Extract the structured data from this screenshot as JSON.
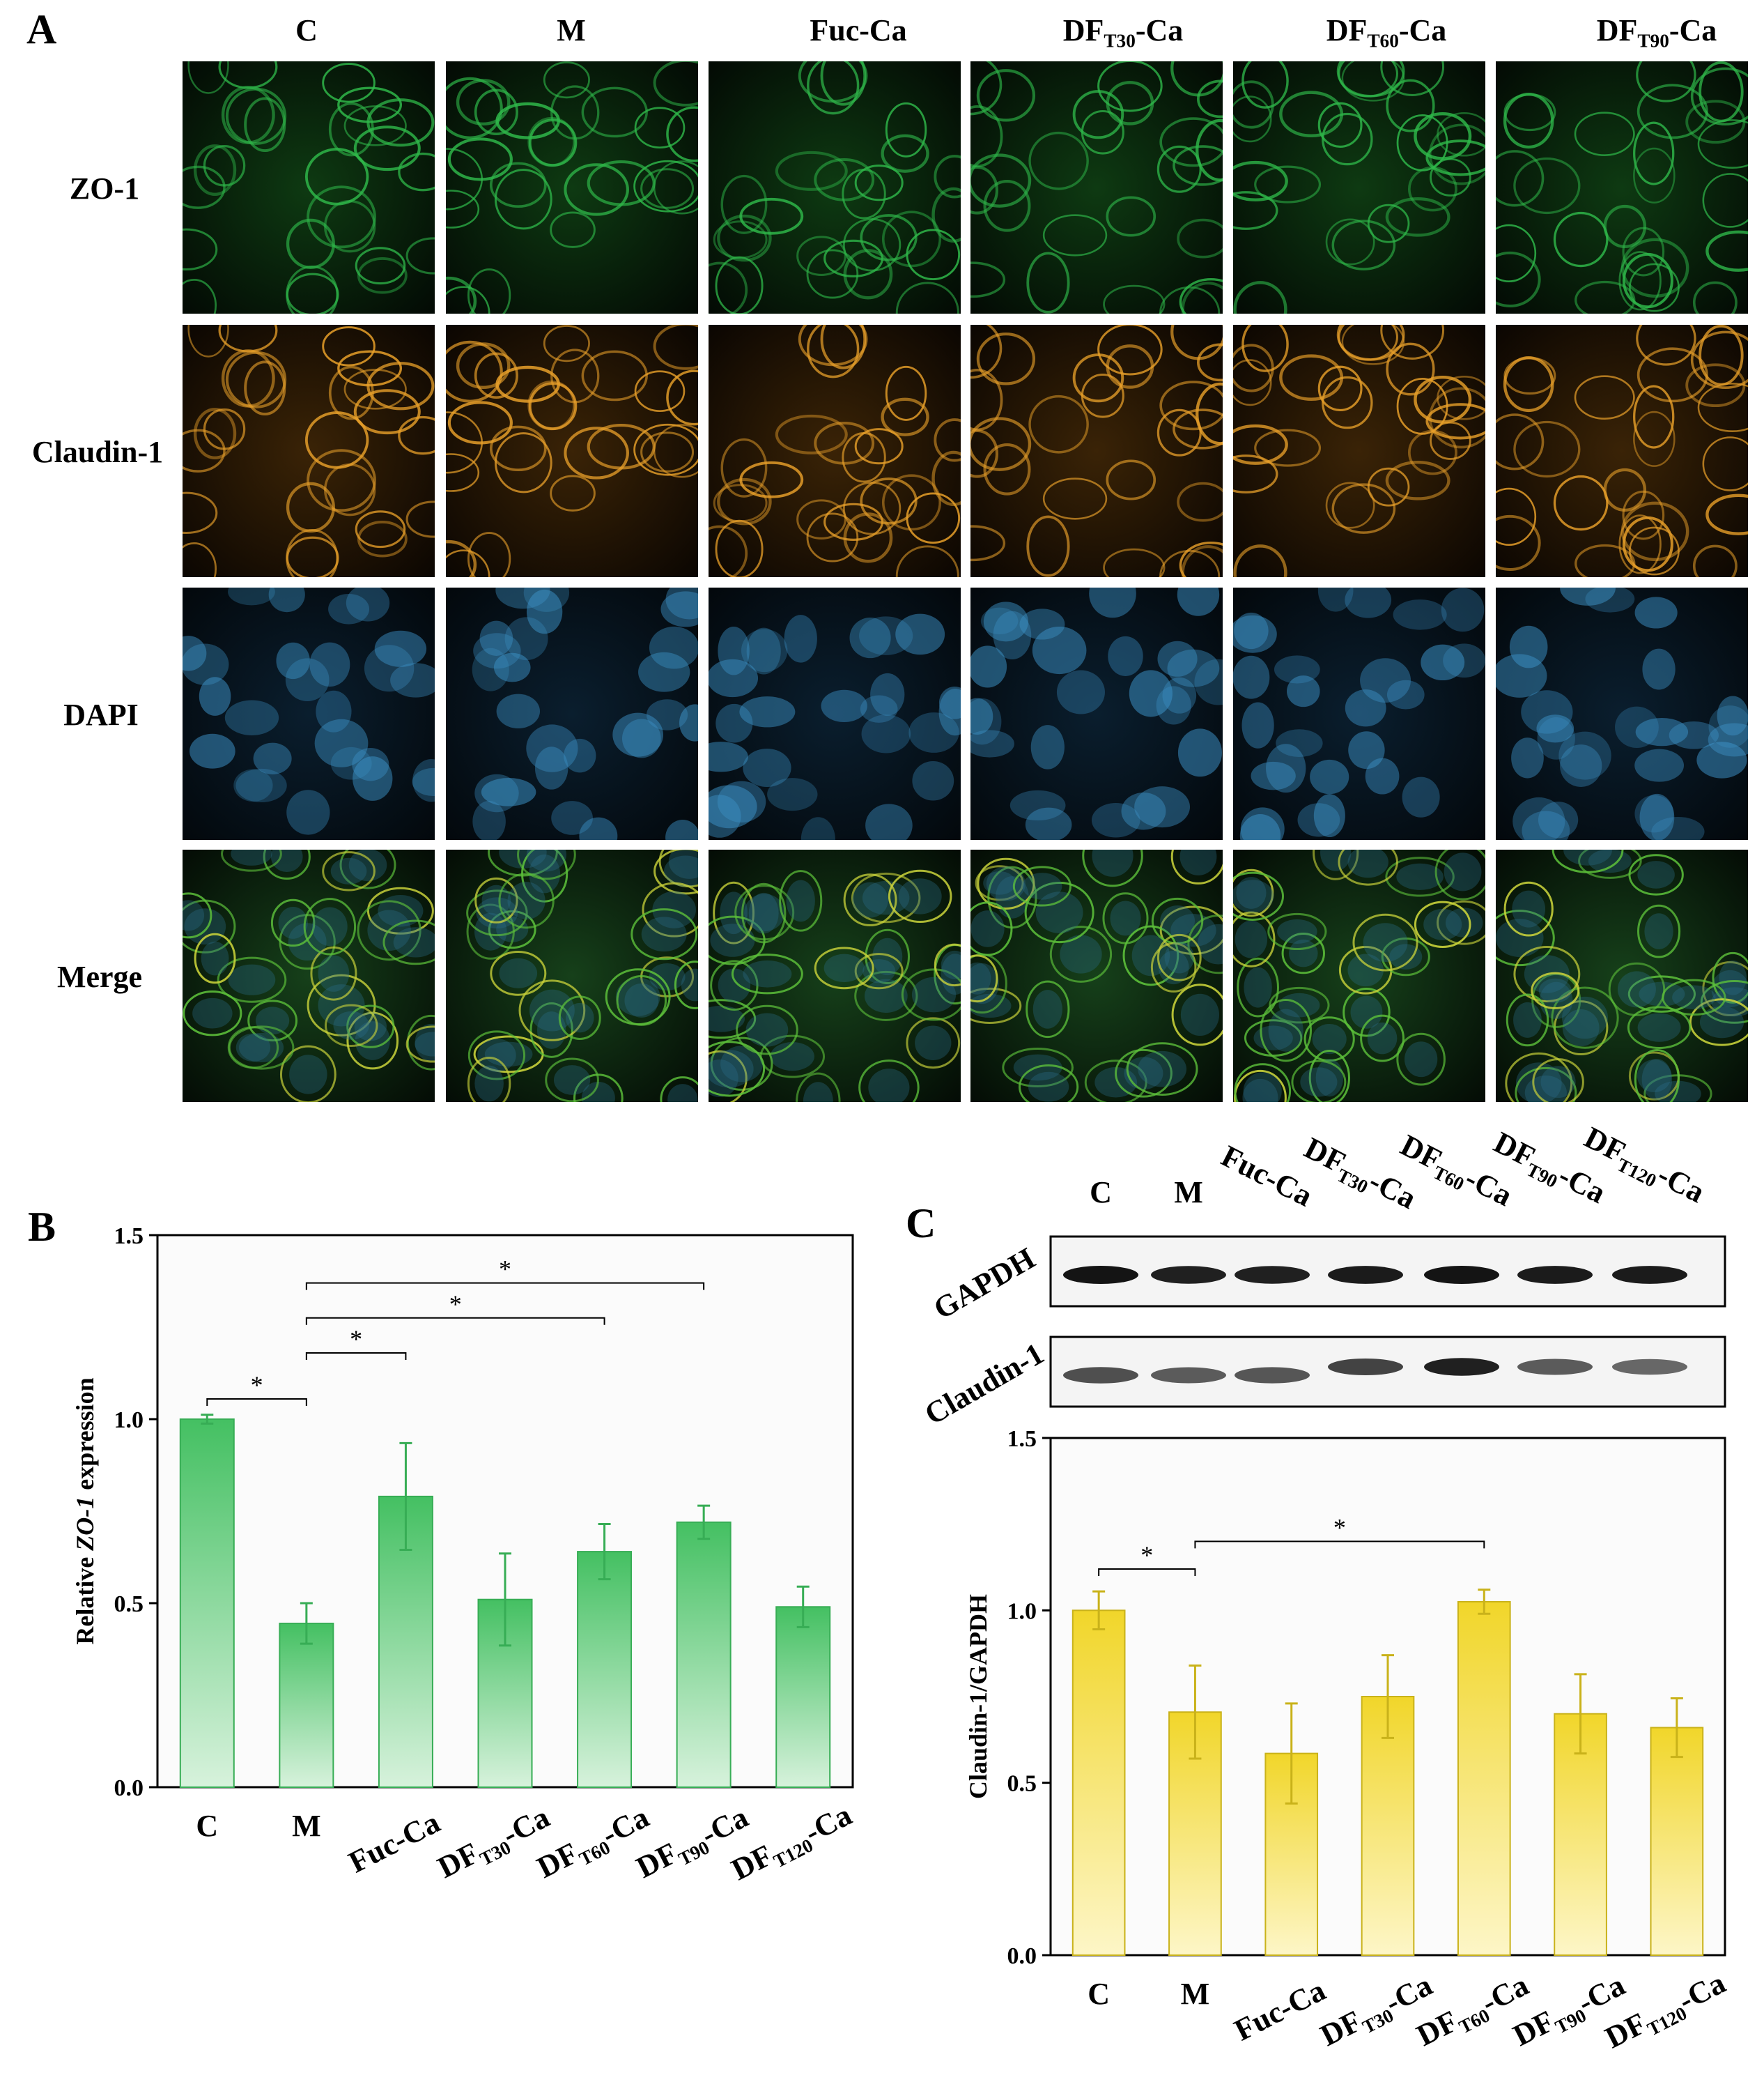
{
  "panel_a": {
    "letter": "A",
    "columns": [
      "C",
      "M",
      "Fuc-Ca",
      "DF|T30|-Ca",
      "DF|T60|-Ca",
      "DF|T90|-Ca"
    ],
    "rows": [
      {
        "label": "ZO-1",
        "color": "#2fb84a"
      },
      {
        "label": "Claudin-1",
        "color": "#e8a02a"
      },
      {
        "label": "DAPI",
        "color": "#3d93c8"
      },
      {
        "label": "Merge",
        "color": "#5cbf3a"
      }
    ]
  },
  "panel_b": {
    "letter": "B",
    "bar_color": "#4fc26a",
    "chart_data": {
      "type": "bar",
      "categories": [
        "C",
        "M",
        "Fuc-Ca",
        "DF|T30|-Ca",
        "DF|T60|-Ca",
        "DF|T90|-Ca",
        "DF|T120|-Ca"
      ],
      "values": [
        1.0,
        0.445,
        0.79,
        0.51,
        0.64,
        0.72,
        0.49
      ],
      "errors": [
        0.012,
        0.055,
        0.145,
        0.125,
        0.075,
        0.045,
        0.055
      ],
      "ylabel": "Relative |ZO-1| expression",
      "ylim": [
        0,
        1.5
      ],
      "yticks": [
        "0.0",
        "0.5",
        "1.0",
        "1.5"
      ],
      "significance": [
        {
          "from": 0,
          "to": 1,
          "level": 1.055,
          "label": "*"
        },
        {
          "from": 1,
          "to": 2,
          "level": 1.18,
          "label": "*"
        },
        {
          "from": 1,
          "to": 4,
          "level": 1.275,
          "label": "*"
        },
        {
          "from": 1,
          "to": 5,
          "level": 1.37,
          "label": "*"
        }
      ]
    }
  },
  "panel_c": {
    "letter": "C",
    "blot_lanes": [
      "C",
      "M",
      "Fuc-Ca",
      "DF|T30|-Ca",
      "DF|T60|-Ca",
      "DF|T90|-Ca",
      "DF|T120|-Ca"
    ],
    "blots": [
      {
        "label": "GAPDH",
        "intensity": [
          1.0,
          0.95,
          0.95,
          0.97,
          1.0,
          0.97,
          0.97
        ]
      },
      {
        "label": "Claudin-1",
        "intensity": [
          0.75,
          0.7,
          0.72,
          0.8,
          0.95,
          0.7,
          0.65
        ]
      }
    ],
    "bar_color": "#f3d935",
    "chart_data": {
      "type": "bar",
      "categories": [
        "C",
        "M",
        "Fuc-Ca",
        "DF|T30|-Ca",
        "DF|T60|-Ca",
        "DF|T90|-Ca",
        "DF|T120|-Ca"
      ],
      "values": [
        1.0,
        0.705,
        0.585,
        0.75,
        1.025,
        0.7,
        0.66
      ],
      "errors": [
        0.055,
        0.135,
        0.145,
        0.12,
        0.035,
        0.115,
        0.085
      ],
      "ylabel": "Claudin-1/GAPDH",
      "ylim": [
        0,
        1.5
      ],
      "yticks": [
        "0.0",
        "0.5",
        "1.0",
        "1.5"
      ],
      "significance": [
        {
          "from": 0,
          "to": 1,
          "level": 1.12,
          "label": "*"
        },
        {
          "from": 1,
          "to": 4,
          "level": 1.2,
          "label": "*"
        }
      ]
    }
  }
}
